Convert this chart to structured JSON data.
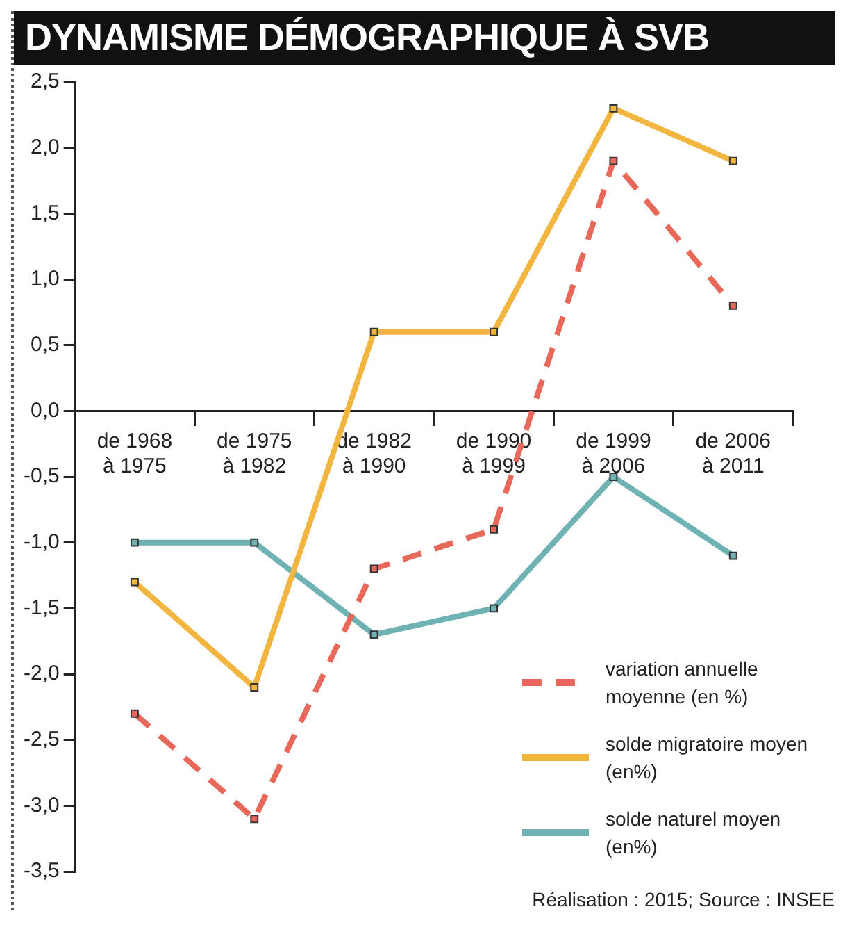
{
  "chart_data": {
    "type": "line",
    "title": "DYNAMISME DÉMOGRAPHIQUE À SVB",
    "categories": [
      "de 1968 à 1975",
      "de 1975 à 1982",
      "de 1982 à 1990",
      "de 1990 à 1999",
      "de 1999 à 2006",
      "de 2006 à 2011"
    ],
    "series": [
      {
        "name": "variation annuelle moyenne (en %)",
        "color": "#e8695a",
        "line_style": "dashed",
        "values": [
          -2.3,
          -3.1,
          -1.2,
          -0.9,
          1.9,
          0.8
        ]
      },
      {
        "name": "solde migratoire moyen (en%)",
        "color": "#f2b53f",
        "line_style": "solid",
        "values": [
          -1.3,
          -2.1,
          0.6,
          0.6,
          2.3,
          1.9
        ]
      },
      {
        "name": "solde naturel moyen (en%)",
        "color": "#6fb2b4",
        "line_style": "solid",
        "values": [
          -1.0,
          -1.0,
          -1.7,
          -1.5,
          -0.5,
          -1.1
        ]
      }
    ],
    "ylim": [
      -3.5,
      2.5
    ],
    "yticks": [
      {
        "value": 2.5,
        "label": "2,5"
      },
      {
        "value": 2,
        "label": "2,0"
      },
      {
        "value": 1.5,
        "label": "1,5"
      },
      {
        "value": 1,
        "label": "1,0"
      },
      {
        "value": 0.5,
        "label": "0,5"
      },
      {
        "value": 0,
        "label": "0,0"
      },
      {
        "value": -0.5,
        "label": "-0,5"
      },
      {
        "value": -1,
        "label": "-1,0"
      },
      {
        "value": -1.5,
        "label": "-1,5"
      },
      {
        "value": -2,
        "label": "-2,0"
      },
      {
        "value": -2.5,
        "label": "-2,5"
      },
      {
        "value": -3,
        "label": "-3,0"
      },
      {
        "value": -3.5,
        "label": "-3,5"
      }
    ],
    "marker": "square",
    "legend": "bottom right",
    "annotations": [
      "Réalisation : 2015; Source : INSEE"
    ]
  }
}
